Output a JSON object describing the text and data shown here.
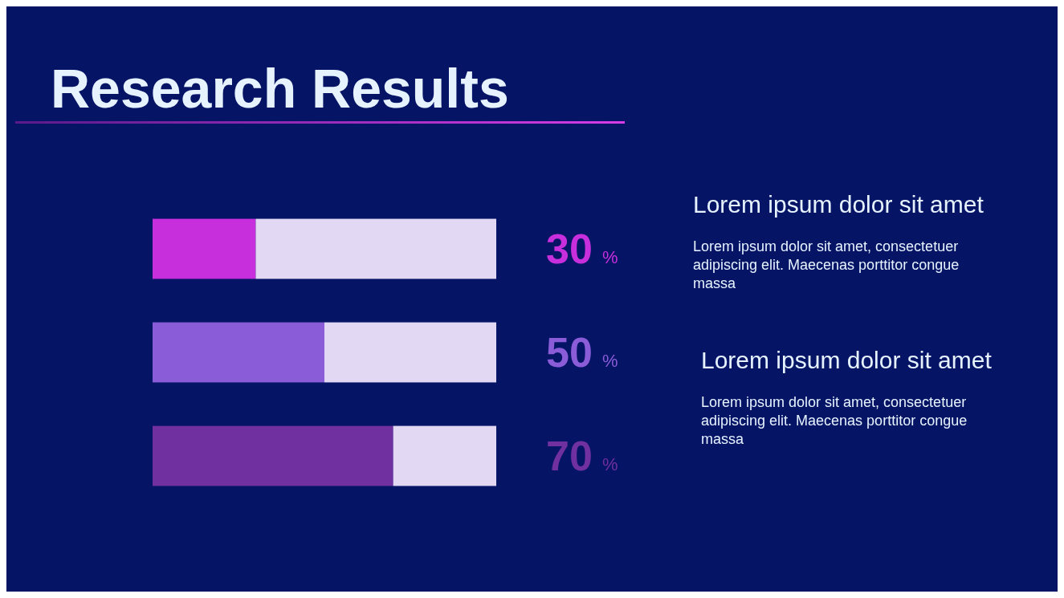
{
  "chart_data": {
    "type": "bar",
    "orientation": "horizontal",
    "stacked": true,
    "title": "Research Results",
    "categories": [
      null,
      null,
      null
    ],
    "xlim": [
      0,
      100
    ],
    "series": [
      {
        "colors": [
          "#c82fdc",
          "#8a5cd8",
          "#7030a0"
        ],
        "values": [
          30,
          50,
          70
        ],
        "value_labels": [
          "30 %",
          "50 %",
          "70 %"
        ]
      },
      {
        "color": "#e2d8f4",
        "values": [
          70,
          50,
          30
        ]
      }
    ],
    "annotations": [
      "Lorem ipsum dolor sit amet",
      "Lorem ipsum dolor sit amet, consectetuer adipiscing elit. Maecenas porttitor congue massa",
      "Lorem ipsum dolor sit amet",
      "Lorem ipsum dolor sit amet, consectetuer adipiscing elit. Maecenas porttitor congue massa"
    ]
  }
}
